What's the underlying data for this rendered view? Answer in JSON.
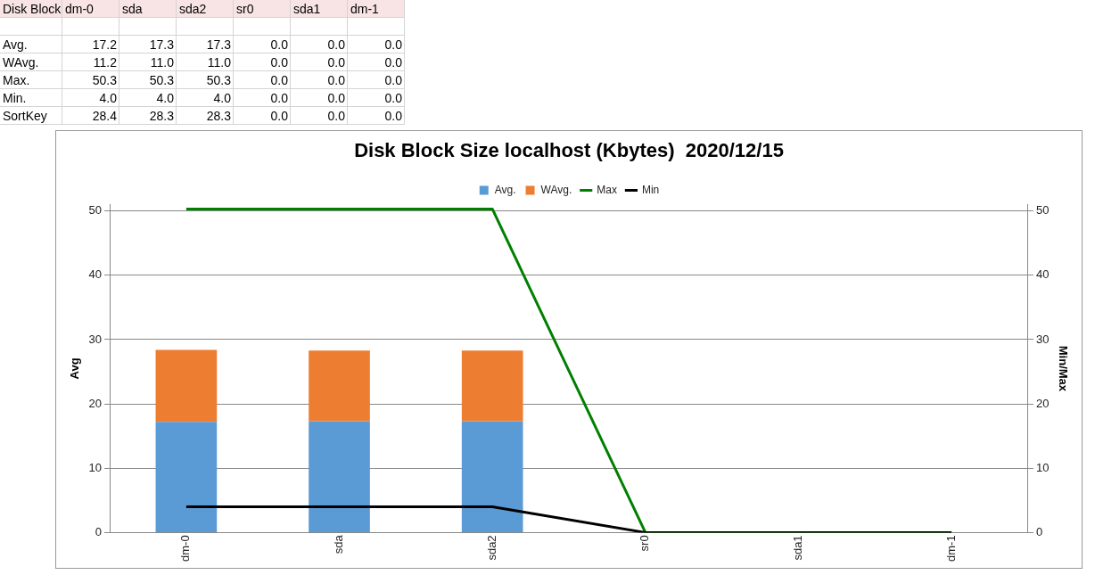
{
  "chart_data": [
    {
      "type": "other",
      "annotations": [
        "Disk Block",
        "dm-0",
        "sda",
        "sda2",
        "sr0",
        "sda1",
        "dm-1",
        "Avg.",
        "17.2",
        "17.3",
        "17.3",
        "0.0",
        "0.0",
        "0.0",
        "WAvg.",
        "11.2",
        "11.0",
        "11.0",
        "0.0",
        "0.0",
        "0.0",
        "Max.",
        "50.3",
        "50.3",
        "50.3",
        "0.0",
        "0.0",
        "0.0",
        "Min.",
        "4.0",
        "4.0",
        "4.0",
        "0.0",
        "0.0",
        "0.0",
        "SortKey",
        "28.4",
        "28.3",
        "28.3",
        "0.0",
        "0.0",
        "0.0"
      ]
    },
    {
      "type": "bar",
      "title": "Disk Block Size localhost (Kbytes)  2020/12/15",
      "categories": [
        "dm-0",
        "sda",
        "sda2",
        "sr0",
        "sda1",
        "dm-1"
      ],
      "stacked": true,
      "series": [
        {
          "name": "Avg.",
          "color": "#5b9bd5",
          "values": [
            17.2,
            17.3,
            17.3,
            0,
            0,
            0
          ]
        },
        {
          "name": "WAvg.",
          "color": "#ed7d31",
          "values": [
            11.2,
            11.0,
            11.0,
            0,
            0,
            0
          ]
        },
        {
          "name": "Max",
          "type": "line",
          "axis": "y2",
          "color": "#008000",
          "values": [
            50.3,
            50.3,
            50.3,
            0,
            0,
            0
          ]
        },
        {
          "name": "Min",
          "type": "line",
          "axis": "y2",
          "color": "#000000",
          "values": [
            4.0,
            4.0,
            4.0,
            0,
            0,
            0
          ]
        }
      ],
      "ylabel": "Avg",
      "y2label": "Min/Max",
      "ylim": [
        0,
        51
      ],
      "yticks": [
        0,
        10,
        20,
        30,
        40,
        50
      ],
      "y2lim": [
        0,
        51
      ],
      "y2ticks": [
        0,
        10,
        20,
        30,
        40,
        50
      ],
      "grid": "y",
      "legend": "top",
      "marker": "none",
      "line_style": "solid"
    }
  ]
}
